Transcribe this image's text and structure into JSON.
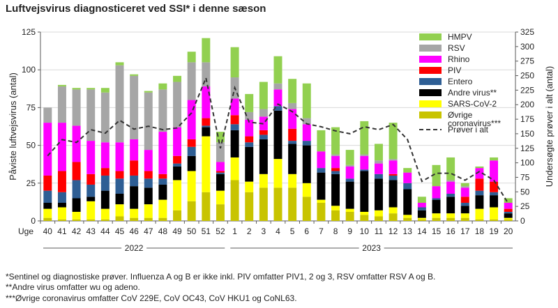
{
  "title": "Luftvejsvirus diagnosticeret ved SSI* i denne sæson",
  "footnotes": [
    "*Sentinel og diagnostiske prøver. Influenza A og B er ikke inkl.  PIV omfatter PIV1, 2 og 3, RSV omfatter RSV A og B.",
    "**Andre  virus omfatter wu og adeno.",
    "***Øvrige coronavirus omfatter CoV 229E, CoV OC43, CoV HKU1 og CoNL63."
  ],
  "chart_data": {
    "type": "bar",
    "stacked": true,
    "title": "Luftvejsvirus diagnosticeret ved SSI* i denne sæson",
    "x_prefix": "Uge",
    "categories": [
      "40",
      "41",
      "42",
      "43",
      "44",
      "45",
      "46",
      "47",
      "48",
      "49",
      "50",
      "51",
      "52",
      "1",
      "2",
      "3",
      "4",
      "5",
      "6",
      "7",
      "8",
      "9",
      "10",
      "11",
      "12",
      "13",
      "14",
      "15",
      "16",
      "17",
      "18",
      "19",
      "20"
    ],
    "year_groups": [
      {
        "label": "2022",
        "start": 0,
        "end": 12
      },
      {
        "label": "2023",
        "start": 13,
        "end": 32
      }
    ],
    "ylabel": "Påviste luftvejsvirus (antal)",
    "ylim": [
      0,
      125
    ],
    "yticks": [
      0,
      25,
      50,
      75,
      100,
      125
    ],
    "y2label": "Undersøgte prøver i alt (antal)",
    "y2lim": [
      0,
      325
    ],
    "y2ticks": [
      0,
      25,
      50,
      75,
      100,
      125,
      150,
      175,
      200,
      225,
      250,
      275,
      300,
      325
    ],
    "legend_position": "top-right",
    "series": [
      {
        "name": "Øvrige coronavirus***",
        "color": "#c8c400",
        "values": [
          2,
          1,
          1,
          1,
          1,
          3,
          2,
          2,
          2,
          7,
          13,
          19,
          11,
          27,
          19,
          22,
          22,
          22,
          16,
          12,
          7,
          6,
          4,
          3,
          5,
          2,
          1,
          2,
          2,
          2,
          1,
          1,
          1
        ]
      },
      {
        "name": "SARS-CoV-2",
        "color": "#ffff00",
        "values": [
          6,
          8,
          5,
          12,
          7,
          8,
          6,
          9,
          12,
          20,
          20,
          37,
          9,
          15,
          7,
          9,
          19,
          9,
          9,
          2,
          3,
          2,
          2,
          4,
          4,
          2,
          1,
          3,
          3,
          3,
          7,
          8,
          1
        ]
      },
      {
        "name": "Andre virus**",
        "color": "#000000",
        "values": [
          4,
          3,
          9,
          3,
          12,
          7,
          15,
          11,
          10,
          9,
          10,
          6,
          11,
          18,
          23,
          23,
          32,
          20,
          25,
          18,
          21,
          18,
          27,
          21,
          18,
          17,
          5,
          9,
          11,
          5,
          9,
          8,
          3
        ]
      },
      {
        "name": "Entero",
        "color": "#2e5e94",
        "values": [
          8,
          7,
          12,
          8,
          10,
          10,
          7,
          6,
          4,
          2,
          6,
          1,
          1,
          4,
          3,
          3,
          3,
          2,
          3,
          3,
          2,
          2,
          1,
          3,
          3,
          4,
          2,
          1,
          2,
          2,
          3,
          2,
          1
        ]
      },
      {
        "name": "PIV",
        "color": "#ff0000",
        "values": [
          10,
          14,
          12,
          7,
          5,
          5,
          10,
          5,
          3,
          5,
          5,
          5,
          1,
          6,
          4,
          3,
          0,
          8,
          0,
          0,
          2,
          0,
          0,
          0,
          1,
          0,
          0,
          0,
          0,
          4,
          8,
          7,
          2
        ]
      },
      {
        "name": "Rhino",
        "color": "#ff00ff",
        "values": [
          35,
          32,
          24,
          22,
          17,
          19,
          14,
          14,
          28,
          19,
          26,
          21,
          6,
          11,
          11,
          9,
          11,
          13,
          11,
          11,
          8,
          8,
          9,
          7,
          9,
          7,
          3,
          8,
          8,
          6,
          7,
          14,
          4
        ]
      },
      {
        "name": "RSV",
        "color": "#a6a6a6",
        "values": [
          10,
          24,
          24,
          34,
          33,
          51,
          42,
          38,
          28,
          30,
          25,
          16,
          13,
          14,
          5,
          5,
          4,
          4,
          4,
          0,
          1,
          1,
          1,
          2,
          1,
          0,
          0,
          0,
          1,
          1,
          0,
          0,
          0
        ]
      },
      {
        "name": "HMPV",
        "color": "#92d050",
        "values": [
          0,
          1,
          1,
          1,
          3,
          2,
          1,
          1,
          4,
          4,
          7,
          16,
          7,
          20,
          12,
          18,
          18,
          16,
          23,
          14,
          18,
          10,
          22,
          11,
          24,
          3,
          4,
          14,
          15,
          2,
          1,
          2,
          3
        ]
      }
    ],
    "line": {
      "name": "Prøver i alt",
      "color": "#333333",
      "dash": true,
      "axis": "secondary",
      "values": [
        112,
        140,
        135,
        157,
        151,
        173,
        158,
        163,
        157,
        160,
        186,
        246,
        125,
        229,
        170,
        167,
        201,
        188,
        167,
        162,
        155,
        150,
        162,
        157,
        166,
        140,
        68,
        82,
        82,
        70,
        85,
        70,
        30
      ]
    }
  }
}
